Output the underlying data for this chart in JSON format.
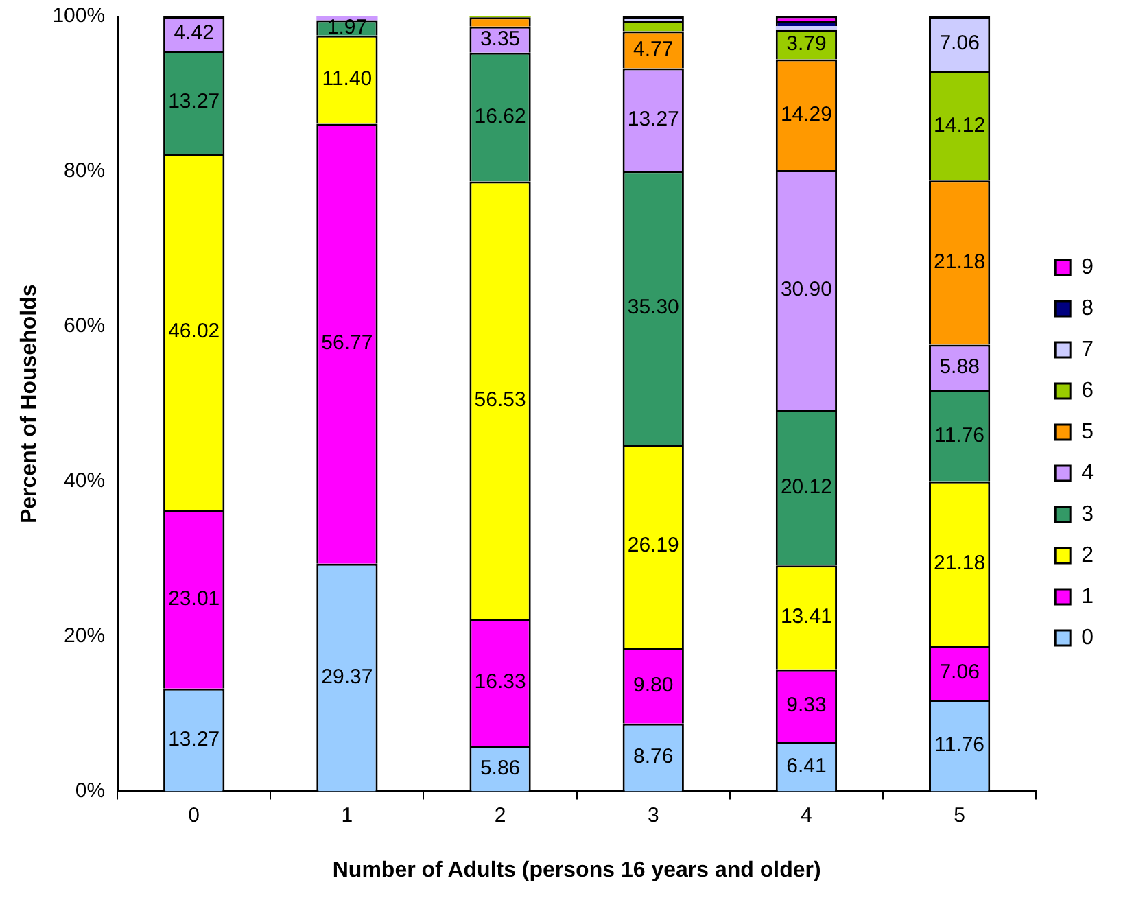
{
  "chart_data": {
    "type": "bar",
    "stacked": true,
    "xlabel": "Number of Adults (persons 16 years and older)",
    "ylabel": "Percent of Households",
    "categories": [
      "0",
      "1",
      "2",
      "3",
      "4",
      "5"
    ],
    "ylim": [
      0,
      100
    ],
    "yticks": [
      {
        "value": 0,
        "label": "0%"
      },
      {
        "value": 20,
        "label": "20%"
      },
      {
        "value": 40,
        "label": "40%"
      },
      {
        "value": 60,
        "label": "60%"
      },
      {
        "value": 80,
        "label": "80%"
      },
      {
        "value": 100,
        "label": "100%"
      }
    ],
    "grid": false,
    "legend": "right",
    "series": [
      {
        "name": "0",
        "color": "#99ccff",
        "values": [
          13.27,
          29.37,
          5.86,
          8.76,
          6.41,
          11.76
        ],
        "value_labels": [
          "13.27",
          "29.37",
          "5.86",
          "8.76",
          "6.41",
          "11.76"
        ]
      },
      {
        "name": "1",
        "color": "#ff00ff",
        "values": [
          23.01,
          56.77,
          16.33,
          9.8,
          9.33,
          7.06
        ],
        "value_labels": [
          "23.01",
          "56.77",
          "16.33",
          "9.80",
          "9.33",
          "7.06"
        ]
      },
      {
        "name": "2",
        "color": "#ffff00",
        "values": [
          46.02,
          11.4,
          56.53,
          26.19,
          13.41,
          21.18
        ],
        "value_labels": [
          "46.02",
          "11.40",
          "56.53",
          "26.19",
          "13.41",
          "21.18"
        ]
      },
      {
        "name": "3",
        "color": "#339966",
        "values": [
          13.27,
          1.97,
          16.62,
          35.3,
          20.12,
          11.76
        ],
        "value_labels": [
          "13.27",
          "1.97",
          "16.62",
          "35.30",
          "20.12",
          "11.76"
        ]
      },
      {
        "name": "4",
        "color": "#cc99ff",
        "values": [
          4.42,
          0.5,
          3.35,
          13.27,
          30.9,
          5.88
        ],
        "value_labels": [
          "4.42",
          null,
          "3.35",
          "13.27",
          "30.90",
          "5.88"
        ]
      },
      {
        "name": "5",
        "color": "#ff9900",
        "values": [
          0,
          0,
          1.2,
          4.77,
          14.29,
          21.18
        ],
        "value_labels": [
          null,
          null,
          null,
          "4.77",
          "14.29",
          "21.18"
        ]
      },
      {
        "name": "6",
        "color": "#99cc00",
        "values": [
          0,
          0,
          0.1,
          1.3,
          3.79,
          14.12
        ],
        "value_labels": [
          null,
          null,
          null,
          null,
          "3.79",
          "14.12"
        ]
      },
      {
        "name": "7",
        "color": "#ccccff",
        "values": [
          0,
          0,
          0,
          0.6,
          0.5,
          7.06
        ],
        "value_labels": [
          null,
          null,
          null,
          null,
          null,
          "7.06"
        ]
      },
      {
        "name": "8",
        "color": "#000080",
        "values": [
          0,
          0,
          0,
          0,
          0.7,
          0
        ],
        "value_labels": [
          null,
          null,
          null,
          null,
          null,
          null
        ]
      },
      {
        "name": "9",
        "color": "#ff00ff",
        "values": [
          0,
          0,
          0,
          0,
          0.6,
          0
        ],
        "value_labels": [
          null,
          null,
          null,
          null,
          null,
          null
        ]
      }
    ]
  }
}
